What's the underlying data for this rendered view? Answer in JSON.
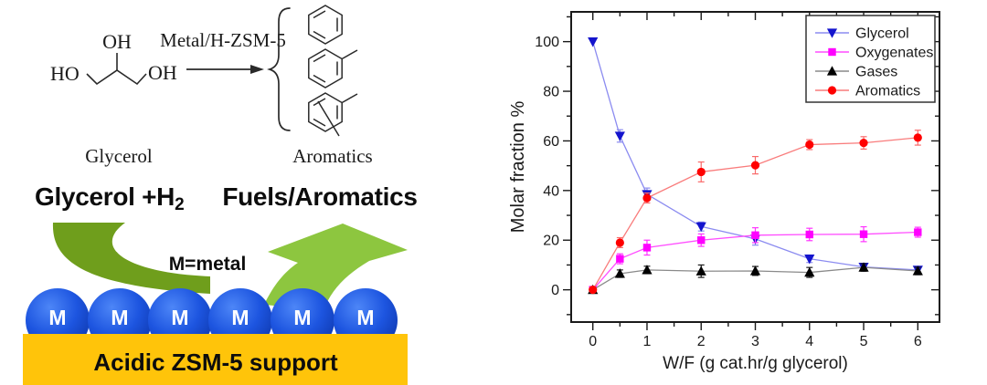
{
  "scheme": {
    "molecule": {
      "oh_top": "OH",
      "ho_left": "HO",
      "oh_right": "OH",
      "name_label": "Glycerol"
    },
    "catalyst_label": "Metal/H-ZSM-5",
    "products_label": "Aromatics",
    "reactants_bold": "Glycerol +H",
    "reactants_sub": "2",
    "products_bold": "Fuels/Aromatics",
    "metal_note": "M=metal",
    "metal_label": "M",
    "support_label": "Acidic ZSM-5 support",
    "colors": {
      "arrow_dark_green": "#6f9e1c",
      "arrow_light_green": "#8dc63f",
      "support_yellow": "#ffc40a",
      "sphere_highlight": "#4d86f7",
      "sphere_mid": "#1d55e0",
      "sphere_edge": "#0c34a6"
    }
  },
  "chart_data": {
    "type": "line",
    "title": "",
    "xlabel": "W/F  (g cat.hr/g glycerol)",
    "ylabel": "Molar fraction %",
    "xlim": [
      -0.4,
      6.4
    ],
    "ylim": [
      -13,
      112
    ],
    "x_major_ticks": [
      0,
      1,
      2,
      3,
      4,
      5,
      6
    ],
    "x_minor_step": 0.5,
    "y_major_ticks": [
      0,
      20,
      40,
      60,
      80,
      100
    ],
    "y_minor_step": 10,
    "grid": false,
    "legend_position": "top-right",
    "x": [
      0,
      0.5,
      1,
      2,
      3,
      4,
      5,
      6
    ],
    "series": [
      {
        "name": "Glycerol",
        "marker": "triangle-down",
        "marker_color": "#1414cd",
        "line_color": "#8b8bf0",
        "err_color": "#8b8bf0",
        "values": [
          100,
          62,
          38.5,
          25.5,
          20.5,
          12.5,
          9.2,
          8
        ],
        "errors": [
          0,
          2.5,
          2.5,
          1.8,
          2.5,
          1.5,
          1.2,
          1.2
        ]
      },
      {
        "name": "Oxygenates",
        "marker": "square",
        "marker_color": "#ff00ff",
        "line_color": "#ff4dff",
        "err_color": "#ff33ff",
        "values": [
          0,
          12.5,
          17,
          20,
          22,
          22.3,
          22.4,
          23.2
        ],
        "errors": [
          0,
          2,
          3,
          2.5,
          3,
          2.5,
          3,
          2
        ]
      },
      {
        "name": "Gases",
        "marker": "triangle-up",
        "marker_color": "#000000",
        "line_color": "#8a8a8a",
        "err_color": "#1a1a1a",
        "values": [
          0,
          6.5,
          8,
          7.5,
          7.6,
          7,
          9,
          7.6
        ],
        "errors": [
          0,
          1.5,
          1.5,
          2.5,
          1.8,
          2,
          1.5,
          1.5
        ]
      },
      {
        "name": "Aromatics",
        "marker": "circle",
        "marker_color": "#ff0000",
        "line_color": "#f97c7c",
        "err_color": "#f96a6a",
        "values": [
          0,
          19,
          37,
          47.5,
          50.2,
          58.5,
          59.2,
          61.3
        ],
        "errors": [
          0,
          2,
          2,
          4,
          3.5,
          2,
          2.5,
          3
        ]
      }
    ]
  }
}
